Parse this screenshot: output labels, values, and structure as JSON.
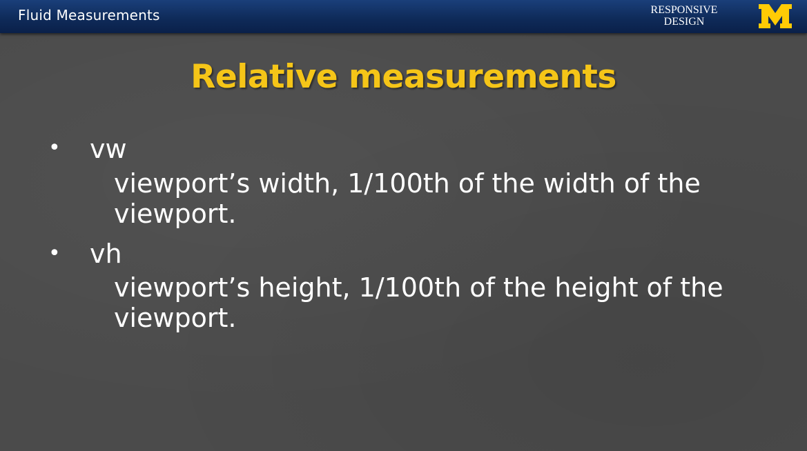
{
  "header": {
    "title": "Fluid Measurements",
    "brand_line1": "RESPONSIVE",
    "brand_line2": "DESIGN",
    "logo_icon": "block-m-logo-icon",
    "logo_color": "#FFCB05",
    "bar_color": "#0f2b5a"
  },
  "slide": {
    "title": "Relative measurements",
    "title_color": "#F5C518",
    "background_color": "#4b4b4b",
    "bullets": [
      {
        "marker": "•",
        "term": "vw",
        "description": "viewport’s width, 1/100th of the width of the viewport."
      },
      {
        "marker": "•",
        "term": "vh",
        "description": "viewport’s height, 1/100th of the height of the viewport."
      }
    ]
  }
}
